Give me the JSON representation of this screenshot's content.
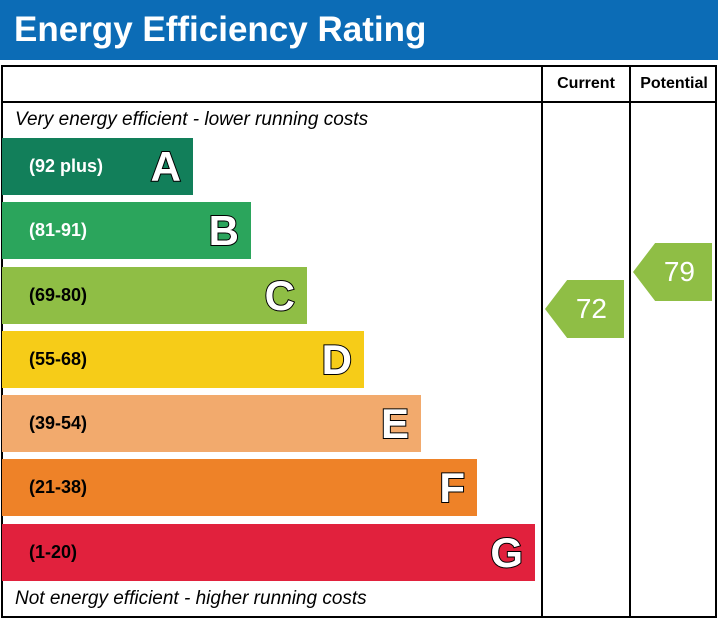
{
  "title": "Energy Efficiency Rating",
  "chart_data": {
    "type": "bar",
    "columns": [
      "Current",
      "Potential"
    ],
    "top_note": "Very energy efficient - lower running costs",
    "bottom_note": "Not energy efficient - higher running costs",
    "bands": [
      {
        "letter": "A",
        "range": "(92 plus)",
        "color": "#127f5a",
        "text_color": "#ffffff"
      },
      {
        "letter": "B",
        "range": "(81-91)",
        "color": "#2ba55c",
        "text_color": "#ffffff"
      },
      {
        "letter": "C",
        "range": "(69-80)",
        "color": "#8fbe45",
        "text_color": "#000000"
      },
      {
        "letter": "D",
        "range": "(55-68)",
        "color": "#f6cc18",
        "text_color": "#000000"
      },
      {
        "letter": "E",
        "range": "(39-54)",
        "color": "#f2aa6d",
        "text_color": "#000000"
      },
      {
        "letter": "F",
        "range": "(21-38)",
        "color": "#ee8228",
        "text_color": "#000000"
      },
      {
        "letter": "G",
        "range": "(1-20)",
        "color": "#e1213d",
        "text_color": "#000000"
      }
    ],
    "current": {
      "value": "72",
      "band": "C",
      "color": "#8fbe45"
    },
    "potential": {
      "value": "79",
      "band": "C",
      "color": "#8fbe45"
    }
  }
}
